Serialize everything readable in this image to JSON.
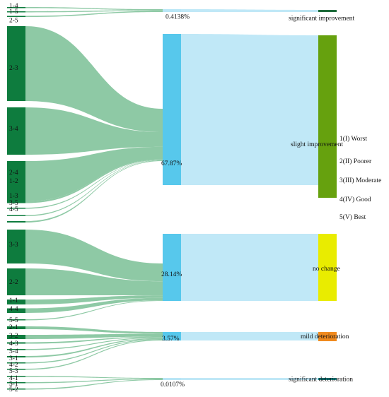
{
  "chart_data": {
    "type": "sankey",
    "colors": {
      "source_node": "#0e7c3e",
      "source_flow": "#88c6a0",
      "middle_node": "#57c8ec",
      "target_flow": "#b9e6f6",
      "significant_improvement": "#1e6b3a",
      "slight_improvement": "#66a10e",
      "no_change": "#e9ec00",
      "mild_deterioration": "#f08a1e",
      "significant_deterioration": "#1a8a8a"
    },
    "middle_nodes": [
      {
        "id": "m1",
        "label": "0.4138%",
        "target": "t1"
      },
      {
        "id": "m2",
        "label": "67.87%",
        "target": "t2"
      },
      {
        "id": "m3",
        "label": "28.14%",
        "target": "t3"
      },
      {
        "id": "m4",
        "label": "3.57%",
        "target": "t4"
      },
      {
        "id": "m5",
        "label": "0.0107%",
        "target": "t5"
      }
    ],
    "target_nodes": [
      {
        "id": "t1",
        "label": "significant improvement",
        "color_key": "significant_improvement"
      },
      {
        "id": "t2",
        "label": "slight improvement",
        "color_key": "slight_improvement"
      },
      {
        "id": "t3",
        "label": "no change",
        "color_key": "no_change"
      },
      {
        "id": "t4",
        "label": "mild deterioration",
        "color_key": "mild_deterioration"
      },
      {
        "id": "t5",
        "label": "significant deterioration",
        "color_key": "significant_deterioration"
      }
    ],
    "source_nodes": [
      {
        "label": "1-4",
        "middle": "m1"
      },
      {
        "label": "1-5",
        "middle": "m1"
      },
      {
        "label": "2-5",
        "middle": "m1"
      },
      {
        "label": "2-3",
        "middle": "m2"
      },
      {
        "label": "3-4",
        "middle": "m2"
      },
      {
        "label": "2-4",
        "middle": "m2"
      },
      {
        "label": "1-2",
        "middle": "m2"
      },
      {
        "label": "4-5",
        "middle": "m2"
      },
      {
        "label": "1-3",
        "middle": "m2"
      },
      {
        "label": "3-5",
        "middle": "m2"
      },
      {
        "label": "3-3",
        "middle": "m3"
      },
      {
        "label": "2-2",
        "middle": "m3"
      },
      {
        "label": "1-1",
        "middle": "m3"
      },
      {
        "label": "4-4",
        "middle": "m3"
      },
      {
        "label": "5-5",
        "middle": "m3"
      },
      {
        "label": "2-1",
        "middle": "m4"
      },
      {
        "label": "3-2",
        "middle": "m4"
      },
      {
        "label": "4-3",
        "middle": "m4"
      },
      {
        "label": "5-4",
        "middle": "m4"
      },
      {
        "label": "3-1",
        "middle": "m4"
      },
      {
        "label": "4-2",
        "middle": "m4"
      },
      {
        "label": "5-3",
        "middle": "m4"
      },
      {
        "label": "4-1",
        "middle": "m5"
      },
      {
        "label": "5-1",
        "middle": "m5"
      },
      {
        "label": "5-2",
        "middle": "m5"
      }
    ],
    "legend": [
      "1(I)  Worst",
      "2(II)  Poorer",
      "3(III)  Moderate",
      "4(IV)  Good",
      "5(V)  Best"
    ]
  }
}
